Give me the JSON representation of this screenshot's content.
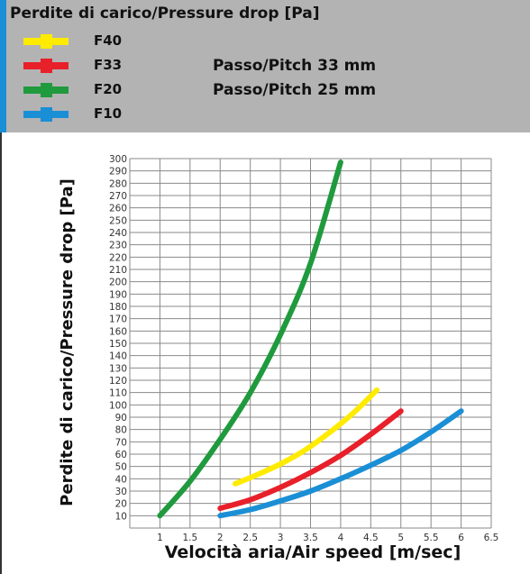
{
  "header": {
    "title": "Perdite di carico/Pressure drop  [Pa]",
    "legend": [
      {
        "label": "F40",
        "color": "#ffeb00"
      },
      {
        "label": "F33",
        "color": "#e8202a"
      },
      {
        "label": "F20",
        "color": "#1f9a3d"
      },
      {
        "label": "F10",
        "color": "#1a8fd6"
      }
    ],
    "pitch_33": "Passo/Pitch 33 mm",
    "pitch_25": "Passo/Pitch 25 mm"
  },
  "chart_data": {
    "type": "line",
    "xlabel": "Velocità aria/Air speed [m/sec]",
    "ylabel": "Perdite di carico/Pressure drop [Pa]",
    "xlim": [
      0.5,
      6.5
    ],
    "ylim": [
      0,
      300
    ],
    "x_ticks": [
      1,
      1.5,
      2,
      2.5,
      3,
      3.5,
      4,
      4.5,
      5,
      5.5,
      6,
      6.5
    ],
    "x_tick_labels": [
      "1",
      "1.5",
      "2",
      "2.5",
      "3",
      "3.5",
      "4",
      "4.5",
      "5",
      "5.5",
      "6",
      "6.5"
    ],
    "y_ticks": [
      10,
      20,
      30,
      40,
      50,
      60,
      70,
      80,
      90,
      100,
      110,
      120,
      130,
      140,
      150,
      160,
      170,
      180,
      190,
      200,
      210,
      220,
      230,
      240,
      250,
      260,
      270,
      280,
      290,
      300
    ],
    "grid": true,
    "series": [
      {
        "name": "F40",
        "color": "#ffeb00",
        "x": [
          2.25,
          2.6,
          3.0,
          3.4,
          3.8,
          4.2,
          4.6
        ],
        "y": [
          36,
          43,
          52,
          63,
          77,
          93,
          112
        ]
      },
      {
        "name": "F33",
        "color": "#e8202a",
        "x": [
          2.0,
          2.5,
          3.0,
          3.5,
          4.0,
          4.5,
          5.0
        ],
        "y": [
          16,
          23,
          33,
          45,
          59,
          76,
          95
        ]
      },
      {
        "name": "F20",
        "color": "#1f9a3d",
        "x": [
          1.0,
          1.5,
          2.0,
          2.5,
          3.0,
          3.5,
          4.0
        ],
        "y": [
          10,
          38,
          72,
          110,
          157,
          215,
          297
        ]
      },
      {
        "name": "F10",
        "color": "#1a8fd6",
        "x": [
          2.0,
          2.5,
          3.0,
          3.5,
          4.0,
          4.5,
          5.0,
          5.5,
          6.0
        ],
        "y": [
          10,
          15,
          22,
          30,
          40,
          51,
          63,
          78,
          95
        ]
      }
    ]
  }
}
